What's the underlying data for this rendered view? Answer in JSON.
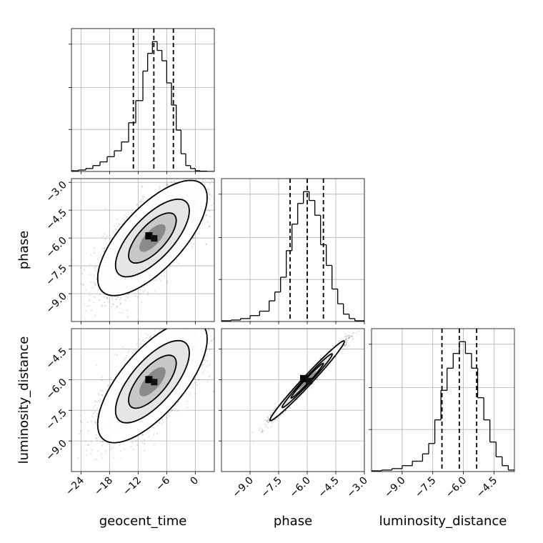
{
  "chart_data": {
    "type": "corner",
    "parameters": [
      "geocent_time",
      "phase",
      "luminosity_distance"
    ],
    "grid": true,
    "quantile_lines": "dashed",
    "histograms": [
      {
        "name": "geocent_time",
        "xlim": [
          -26,
          4
        ],
        "xticks": [
          -24,
          -18,
          -12,
          -6,
          0
        ],
        "bin_edges": [
          -26,
          -24.5,
          -23,
          -21.5,
          -20,
          -18.5,
          -17,
          -15.5,
          -14,
          -12.5,
          -11,
          -10,
          -9,
          -8,
          -7,
          -6,
          -5,
          -4,
          -3,
          -2,
          -1,
          0,
          1,
          2.5,
          4
        ],
        "counts": [
          0.5,
          1,
          2,
          4,
          6.5,
          10,
          14,
          20,
          33,
          48,
          68,
          80,
          88,
          82,
          75,
          60,
          45,
          28,
          12,
          4,
          2,
          0.5,
          0.2,
          0
        ],
        "quantiles": [
          -13,
          -8.7,
          -4.6
        ]
      },
      {
        "name": "phase",
        "xlim": [
          -10.5,
          -3
        ],
        "xticks": [
          -9.0,
          -7.5,
          -6.0,
          -4.5,
          -3.0
        ],
        "bin_edges": [
          -10.5,
          -10,
          -9.5,
          -9,
          -8.5,
          -8,
          -7.7,
          -7.4,
          -7.1,
          -6.8,
          -6.5,
          -6.2,
          -5.9,
          -5.6,
          -5.3,
          -5,
          -4.7,
          -4.4,
          -4.1,
          -3.8,
          -3.5,
          -3
        ],
        "counts": [
          0.5,
          1,
          2,
          4,
          7,
          14,
          20,
          30,
          48,
          66,
          80,
          88,
          82,
          72,
          52,
          38,
          22,
          12,
          5,
          2,
          0.5
        ],
        "quantiles": [
          -6.9,
          -6.0,
          -5.15
        ]
      },
      {
        "name": "luminosity_distance",
        "xlim": [
          -10.5,
          -3.5
        ],
        "xticks": [
          -9.0,
          -7.5,
          -6.0,
          -4.5
        ],
        "bin_edges": [
          -10.5,
          -10,
          -9.5,
          -9,
          -8.5,
          -8,
          -7.7,
          -7.4,
          -7.1,
          -6.8,
          -6.5,
          -6.2,
          -5.9,
          -5.6,
          -5.3,
          -5,
          -4.7,
          -4.4,
          -4.1,
          -3.8,
          -3.5
        ],
        "counts": [
          0.5,
          1,
          2,
          4,
          7,
          12,
          19,
          35,
          55,
          70,
          80,
          88,
          80,
          70,
          50,
          35,
          20,
          10,
          4,
          1
        ],
        "quantiles": [
          -7.05,
          -6.2,
          -5.35
        ]
      }
    ],
    "pairs": [
      {
        "x": "geocent_time",
        "y": "phase",
        "xlim": [
          -26,
          4
        ],
        "ylim": [
          -10.5,
          -2.8
        ],
        "yticks": [
          -3.0,
          -4.5,
          -6.0,
          -7.5,
          -9.0
        ],
        "mean": [
          -9,
          -6
        ],
        "sd": [
          5,
          1.35
        ],
        "rho": 0.7
      },
      {
        "x": "geocent_time",
        "y": "luminosity_distance",
        "xlim": [
          -26,
          4
        ],
        "ylim": [
          -10.5,
          -3.5
        ],
        "yticks": [
          -4.5,
          -6.0,
          -7.5,
          -9.0
        ],
        "mean": [
          -9,
          -6.1
        ],
        "sd": [
          5,
          1.3
        ],
        "rho": 0.7
      },
      {
        "x": "phase",
        "y": "luminosity_distance",
        "xlim": [
          -10.5,
          -3
        ],
        "ylim": [
          -10.5,
          -3.5
        ],
        "mean": [
          -6,
          -6.05
        ],
        "sd": [
          0.85,
          0.85
        ],
        "rho": 0.985
      }
    ]
  }
}
